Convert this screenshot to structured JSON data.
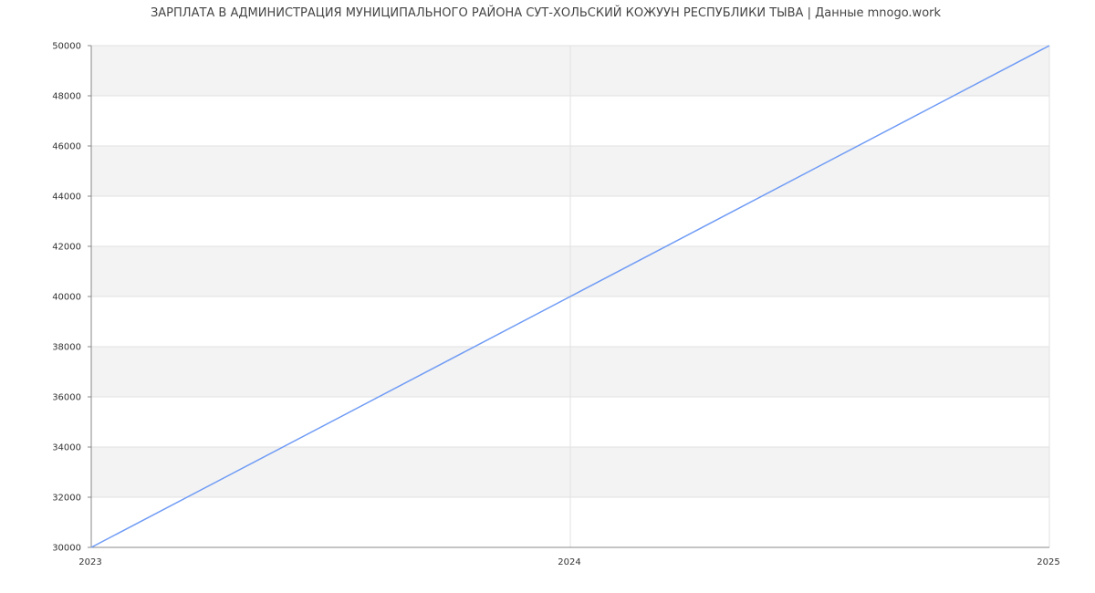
{
  "chart_data": {
    "type": "line",
    "title": "ЗАРПЛАТА В АДМИНИСТРАЦИЯ МУНИЦИПАЛЬНОГО РАЙОНА СУТ-ХОЛЬСКИЙ КОЖУУН РЕСПУБЛИКИ ТЫВА | Данные mnogo.work",
    "x": [
      "2023",
      "2024",
      "2025"
    ],
    "series": [
      {
        "values": [
          30000,
          40000,
          50000
        ],
        "color": "#6f9bf5"
      }
    ],
    "ylim": [
      30000,
      50000
    ],
    "yticks": [
      30000,
      32000,
      34000,
      36000,
      38000,
      40000,
      42000,
      44000,
      46000,
      48000,
      50000
    ],
    "grid": true,
    "band_color": "#f3f3f3",
    "legend": "none"
  }
}
